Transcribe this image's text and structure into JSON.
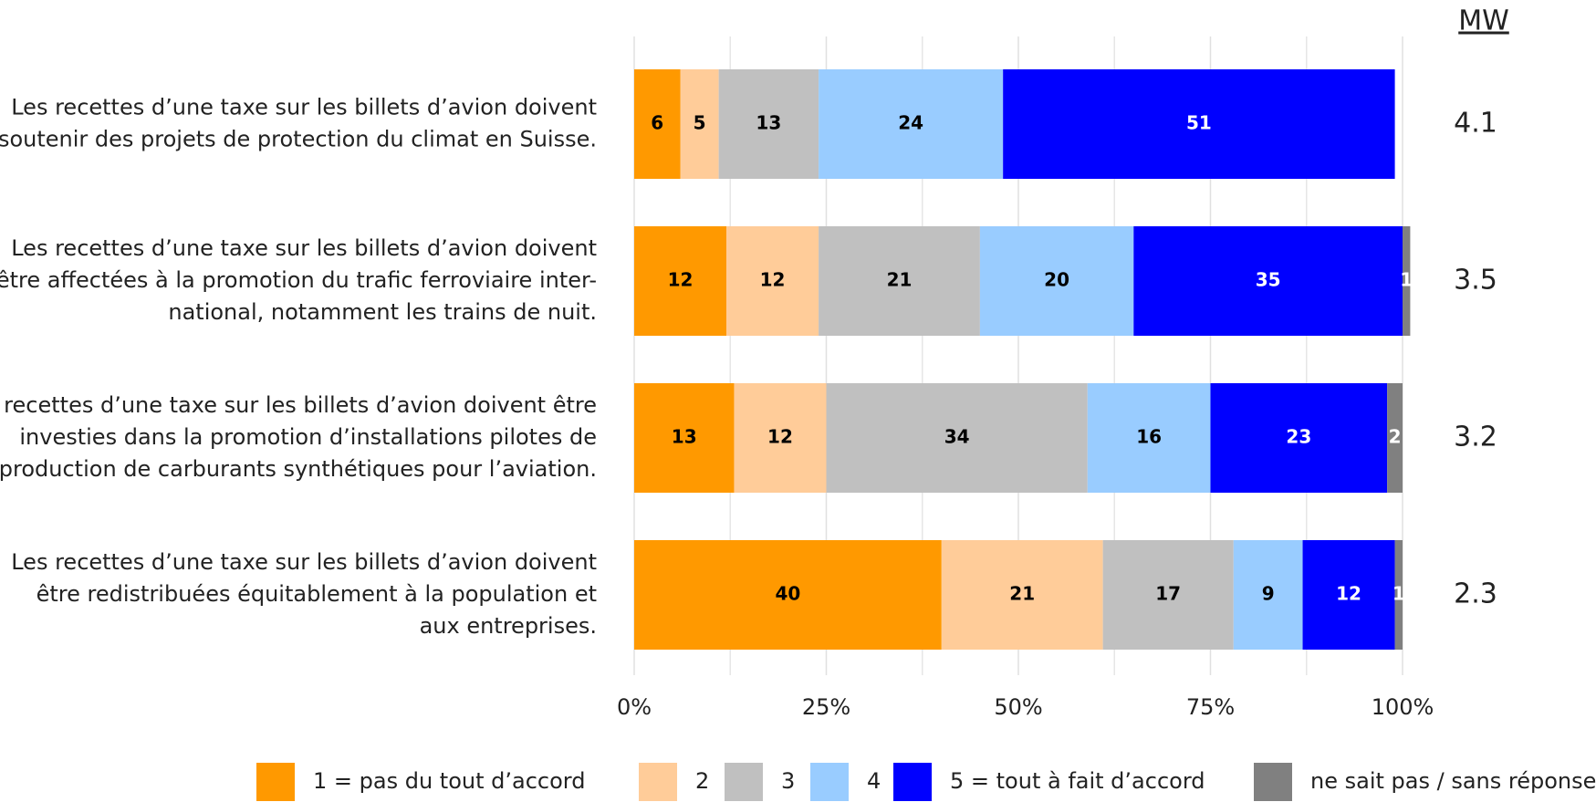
{
  "chart_data": {
    "type": "stacked_barh",
    "categories": [
      [
        "Les recettes d’une taxe sur les billets d’avion doivent",
        "soutenir des projets de protection du climat en Suisse."
      ],
      [
        "Les recettes d’une taxe sur les billets d’avion doivent",
        "être affectées à la promotion du trafic ferroviaire inter-",
        "national, notamment les trains de nuit."
      ],
      [
        "Les recettes d’une taxe sur les billets d’avion doivent être",
        "investies dans la promotion d’installations pilotes de",
        "production de carburants synthétiques pour l’aviation."
      ],
      [
        "Les recettes d’une taxe sur les billets d’avion doivent",
        "être redistribuées équitablement à la population et",
        "aux entreprises."
      ]
    ],
    "series": [
      {
        "name": "1 = pas du tout d’accord",
        "color": "#ff9900",
        "label_color": "#000000",
        "values": [
          6,
          12,
          13,
          40
        ]
      },
      {
        "name": "2",
        "color": "#ffcc99",
        "label_color": "#000000",
        "values": [
          5,
          12,
          12,
          21
        ]
      },
      {
        "name": "3",
        "color": "#c0c0c0",
        "label_color": "#000000",
        "values": [
          13,
          21,
          34,
          17
        ]
      },
      {
        "name": "4",
        "color": "#99ccff",
        "label_color": "#000000",
        "values": [
          24,
          20,
          16,
          9
        ]
      },
      {
        "name": "5 = tout à fait d’accord",
        "color": "#0000ff",
        "label_color": "#ffffff",
        "values": [
          51,
          35,
          23,
          12
        ]
      },
      {
        "name": "ne sait pas / sans réponse",
        "color": "#808080",
        "label_color": "#ffffff",
        "values": [
          0,
          1,
          2,
          1
        ]
      }
    ],
    "xlim": [
      0,
      100
    ],
    "xticks": [
      {
        "value": 0,
        "label": "0%"
      },
      {
        "value": 25,
        "label": "25%"
      },
      {
        "value": 50,
        "label": "50%"
      },
      {
        "value": 75,
        "label": "75%"
      },
      {
        "value": 100,
        "label": "100%"
      }
    ],
    "minor_xticks": [
      12.5,
      37.5,
      62.5,
      87.5
    ],
    "grid": true,
    "mw": {
      "title": "MW",
      "values": [
        4.1,
        3.5,
        3.2,
        2.3
      ]
    },
    "legend": "bottom"
  }
}
